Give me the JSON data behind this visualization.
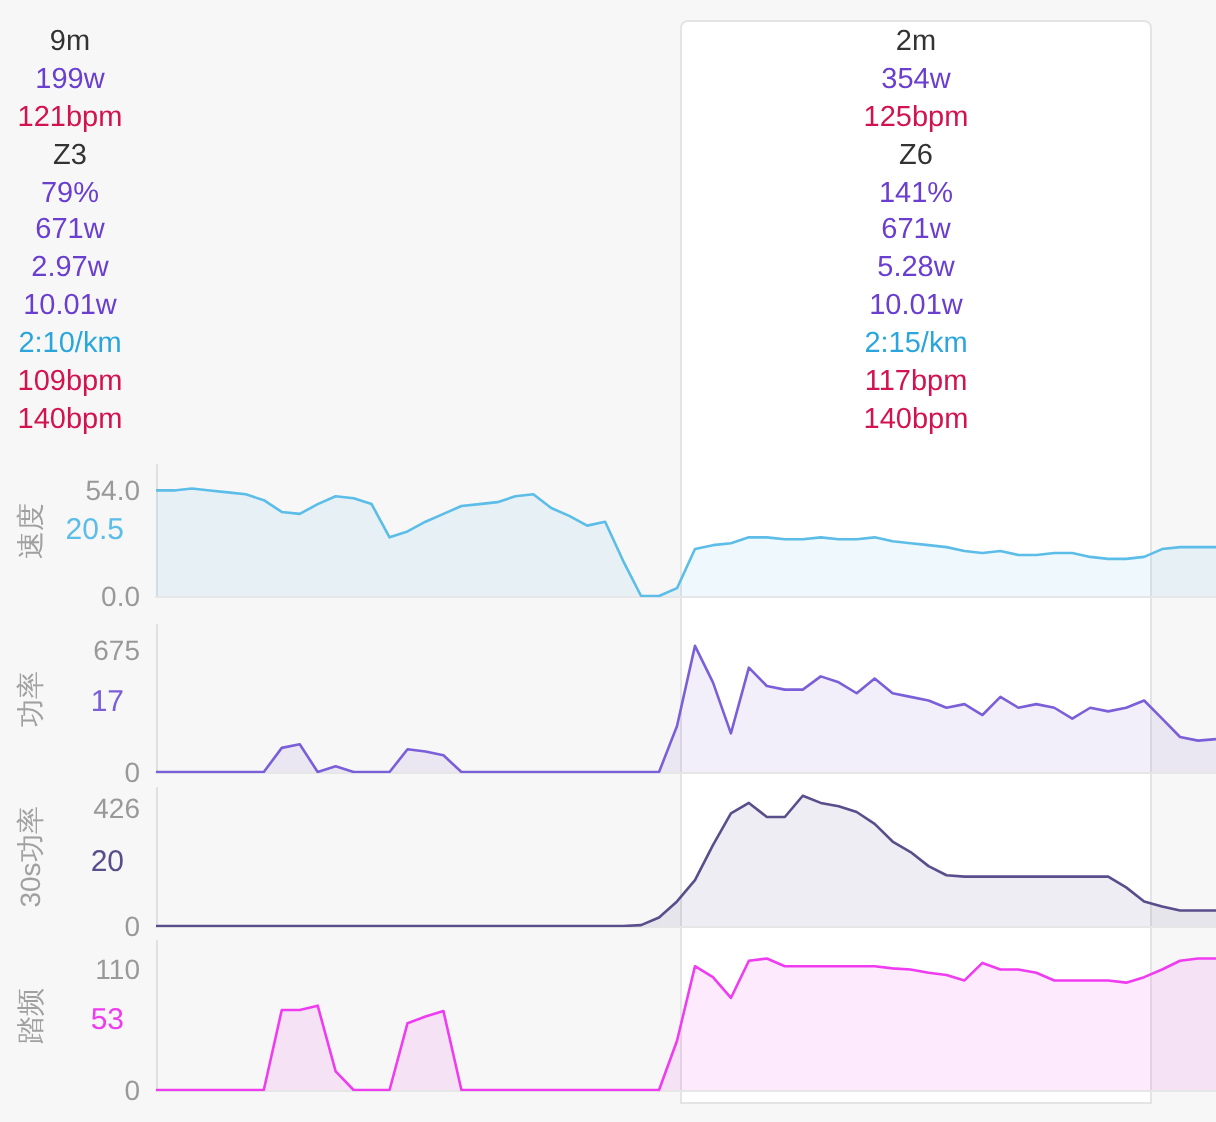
{
  "chart_data": [
    {
      "type": "other",
      "annotations": [
        "9m",
        "199w",
        "121bpm",
        "Z3",
        "79%",
        "671w",
        "2.97w",
        "10.01w",
        "2:10/km",
        "109bpm",
        "140bpm",
        "2m",
        "354w",
        "125bpm",
        "Z6",
        "141%",
        "671w",
        "5.28w",
        "10.01w",
        "2:15/km",
        "117bpm",
        "140bpm"
      ],
      "colors": [
        "#333333",
        "#6a3fd0",
        "#d3134f",
        "#333333",
        "#6a3fd0",
        "#6a3fd0",
        "#6a3fd0",
        "#6a3fd0",
        "#2aa6dd",
        "#d3134f",
        "#d3134f"
      ]
    },
    {
      "type": "area",
      "ylabel": "速度",
      "annotations": [
        "20.5"
      ],
      "categories": [
        null,
        null,
        null,
        null,
        null,
        null,
        null,
        null,
        null,
        null,
        null,
        null,
        null,
        null,
        null,
        null,
        null,
        null,
        null,
        null,
        null,
        null,
        null,
        null,
        null,
        null,
        null,
        null,
        null,
        null,
        null,
        null,
        null,
        null,
        null,
        null,
        null,
        null,
        null,
        null,
        null,
        null,
        null,
        null,
        null,
        null,
        null,
        null,
        null,
        null,
        null,
        null,
        null,
        null,
        null,
        null,
        null,
        null,
        null,
        null
      ],
      "ylim": [
        0,
        67
      ],
      "yticks": [
        {
          "value": 0,
          "label": "0.0"
        },
        {
          "value": 54,
          "label": "54.0"
        }
      ],
      "tick_labels": "y",
      "series": [
        {
          "color": "#5bbde8",
          "values": [
            54,
            54,
            55,
            54,
            53,
            52,
            49,
            43,
            42,
            47,
            51,
            50,
            47,
            30,
            33,
            38,
            42,
            46,
            47,
            48,
            51,
            52,
            45,
            41,
            36,
            38,
            18,
            0,
            0,
            4,
            24,
            26,
            27,
            30,
            30,
            29,
            29,
            30,
            29,
            29,
            30,
            28,
            27,
            26,
            25,
            23,
            22,
            23,
            21,
            21,
            22,
            22,
            20,
            19,
            19,
            20,
            24,
            25,
            25,
            25
          ]
        }
      ]
    },
    {
      "type": "area",
      "ylabel": "功率",
      "annotations": [
        "17"
      ],
      "categories": [
        null,
        null,
        null,
        null,
        null,
        null,
        null,
        null,
        null,
        null,
        null,
        null,
        null,
        null,
        null,
        null,
        null,
        null,
        null,
        null,
        null,
        null,
        null,
        null,
        null,
        null,
        null,
        null,
        null,
        null,
        null,
        null,
        null,
        null,
        null,
        null,
        null,
        null,
        null,
        null,
        null,
        null,
        null,
        null,
        null,
        null,
        null,
        null,
        null,
        null,
        null,
        null,
        null,
        null,
        null,
        null,
        null,
        null,
        null,
        null
      ],
      "ylim": [
        0,
        810
      ],
      "yticks": [
        0,
        675
      ],
      "tick_labels": "y",
      "series": [
        {
          "color": "#7b5fd8",
          "values": [
            0,
            0,
            0,
            0,
            0,
            0,
            0,
            133,
            153,
            0,
            32,
            0,
            0,
            0,
            125,
            113,
            92,
            0,
            0,
            0,
            0,
            0,
            0,
            0,
            0,
            0,
            0,
            0,
            0,
            253,
            695,
            494,
            213,
            575,
            474,
            454,
            454,
            527,
            494,
            434,
            515,
            434,
            414,
            394,
            354,
            374,
            314,
            414,
            354,
            374,
            354,
            294,
            354,
            334,
            354,
            394,
            294,
            193,
            173,
            181
          ]
        }
      ]
    },
    {
      "type": "area",
      "ylabel": "30s功率",
      "annotations": [
        "20"
      ],
      "categories": [
        null,
        null,
        null,
        null,
        null,
        null,
        null,
        null,
        null,
        null,
        null,
        null,
        null,
        null,
        null,
        null,
        null,
        null,
        null,
        null,
        null,
        null,
        null,
        null,
        null,
        null,
        null,
        null,
        null,
        null,
        null,
        null,
        null,
        null,
        null,
        null,
        null,
        null,
        null,
        null,
        null,
        null,
        null,
        null,
        null,
        null,
        null,
        null,
        null,
        null,
        null,
        null,
        null,
        null,
        null,
        null,
        null,
        null,
        null,
        null
      ],
      "ylim": [
        0,
        500
      ],
      "yticks": [
        0,
        426
      ],
      "tick_labels": "y",
      "series": [
        {
          "color": "#5a4d8c",
          "values": [
            0,
            0,
            0,
            0,
            0,
            0,
            0,
            0,
            0,
            0,
            0,
            0,
            0,
            0,
            0,
            0,
            0,
            0,
            0,
            0,
            0,
            0,
            0,
            0,
            0,
            0,
            0,
            3,
            31,
            89,
            166,
            293,
            408,
            446,
            395,
            395,
            472,
            446,
            434,
            413,
            370,
            306,
            268,
            217,
            184,
            179,
            179,
            179,
            179,
            179,
            179,
            179,
            179,
            179,
            140,
            89,
            71,
            56,
            56,
            56
          ]
        }
      ]
    },
    {
      "type": "area",
      "ylabel": "踏频",
      "annotations": [
        "53"
      ],
      "categories": [
        null,
        null,
        null,
        null,
        null,
        null,
        null,
        null,
        null,
        null,
        null,
        null,
        null,
        null,
        null,
        null,
        null,
        null,
        null,
        null,
        null,
        null,
        null,
        null,
        null,
        null,
        null,
        null,
        null,
        null,
        null,
        null,
        null,
        null,
        null,
        null,
        null,
        null,
        null,
        null,
        null,
        null,
        null,
        null,
        null,
        null,
        null,
        null,
        null,
        null,
        null,
        null,
        null,
        null,
        null,
        null,
        null,
        null,
        null,
        null
      ],
      "ylim": [
        0,
        136
      ],
      "yticks": [
        0,
        110
      ],
      "tick_labels": "y",
      "series": [
        {
          "color": "#f03cf0",
          "values": [
            0,
            0,
            0,
            0,
            0,
            0,
            0,
            73,
            73,
            77,
            17,
            0,
            0,
            0,
            61,
            67,
            72,
            0,
            0,
            0,
            0,
            0,
            0,
            0,
            0,
            0,
            0,
            0,
            0,
            45,
            113,
            103,
            84,
            118,
            120,
            113,
            113,
            113,
            113,
            113,
            113,
            111,
            110,
            107,
            105,
            100,
            116,
            110,
            110,
            107,
            100,
            100,
            100,
            100,
            98,
            103,
            110,
            118,
            120,
            120
          ]
        }
      ]
    }
  ]
}
